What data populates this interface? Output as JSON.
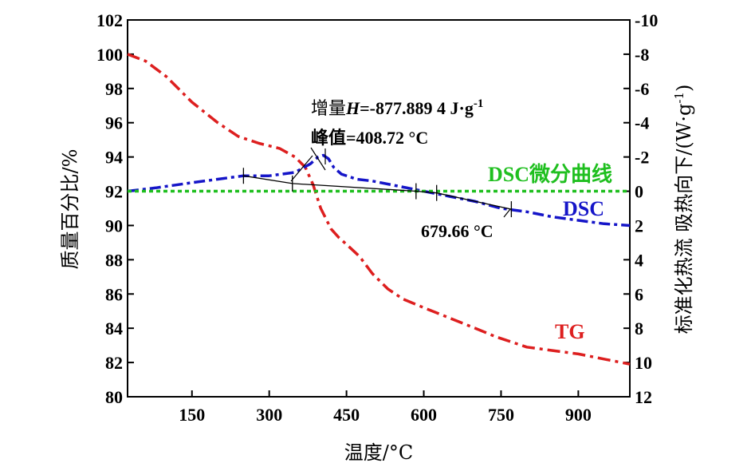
{
  "chart_data": {
    "type": "line",
    "title": "",
    "xlabel": "温度/°C",
    "ylabel_left": "质量百分比/%",
    "ylabel_right": "标准化热流 吸热向下/(W·g",
    "ylabel_right_sup": "-1",
    "ylabel_right_end": ")",
    "xlim": [
      25,
      1000
    ],
    "ylim_left": [
      80,
      102
    ],
    "ylim_right": [
      12,
      -10
    ],
    "x_ticks": [
      150,
      300,
      450,
      600,
      750,
      900
    ],
    "y_left_ticks": [
      80,
      82,
      84,
      86,
      88,
      90,
      92,
      94,
      96,
      98,
      100,
      102
    ],
    "y_right_ticks": [
      12,
      10,
      8,
      6,
      4,
      2,
      0,
      -2,
      -4,
      -6,
      -8,
      -10
    ],
    "series": [
      {
        "name": "TG",
        "axis": "left",
        "color": "#dd1f1f",
        "x": [
          25,
          60,
          100,
          150,
          200,
          240,
          280,
          320,
          350,
          370,
          385,
          400,
          410,
          420,
          435,
          450,
          475,
          500,
          530,
          560,
          600,
          650,
          700,
          740,
          770,
          800,
          850,
          900,
          950,
          1000
        ],
        "y": [
          100.0,
          99.6,
          98.7,
          97.2,
          96.0,
          95.2,
          94.8,
          94.5,
          94.0,
          93.4,
          92.4,
          91.0,
          90.4,
          89.8,
          89.3,
          88.9,
          88.2,
          87.2,
          86.3,
          85.7,
          85.2,
          84.6,
          84.0,
          83.5,
          83.2,
          82.9,
          82.7,
          82.5,
          82.2,
          81.9
        ]
      },
      {
        "name": "DSC",
        "axis": "right",
        "color": "#1515c8",
        "x": [
          25,
          80,
          150,
          200,
          250,
          300,
          350,
          380,
          395,
          405,
          415,
          425,
          440,
          470,
          500,
          550,
          600,
          650,
          700,
          750,
          800,
          850,
          900,
          950,
          1000
        ],
        "y": [
          0.0,
          -0.2,
          -0.5,
          -0.7,
          -0.9,
          -0.9,
          -1.1,
          -1.6,
          -2.0,
          -2.1,
          -1.9,
          -1.4,
          -1.0,
          -0.7,
          -0.6,
          -0.3,
          0.0,
          0.3,
          0.6,
          1.0,
          1.2,
          1.5,
          1.7,
          1.9,
          2.0
        ]
      },
      {
        "name": "DSC微分曲线",
        "axis": "right",
        "color": "#1fbf1f",
        "x": [
          25,
          200,
          400,
          600,
          800,
          1000
        ],
        "y": [
          0.0,
          0.0,
          0.0,
          0.0,
          0.0,
          0.0
        ]
      }
    ],
    "baseline": {
      "x": [
        250,
        345,
        585,
        625,
        770
      ],
      "y": [
        -0.9,
        -0.45,
        0.0,
        0.1,
        1.05
      ]
    },
    "annotations": [
      {
        "text": "增量",
        "italic": "H",
        "rest": "=-877.889 4 J·g",
        "sup": "-1"
      },
      {
        "text": "峰值=408.72 °C"
      },
      {
        "text": "679.66 °C"
      }
    ],
    "labels": {
      "TG": "TG",
      "DSC": "DSC",
      "DSC_deriv": "DSC微分曲线"
    }
  }
}
